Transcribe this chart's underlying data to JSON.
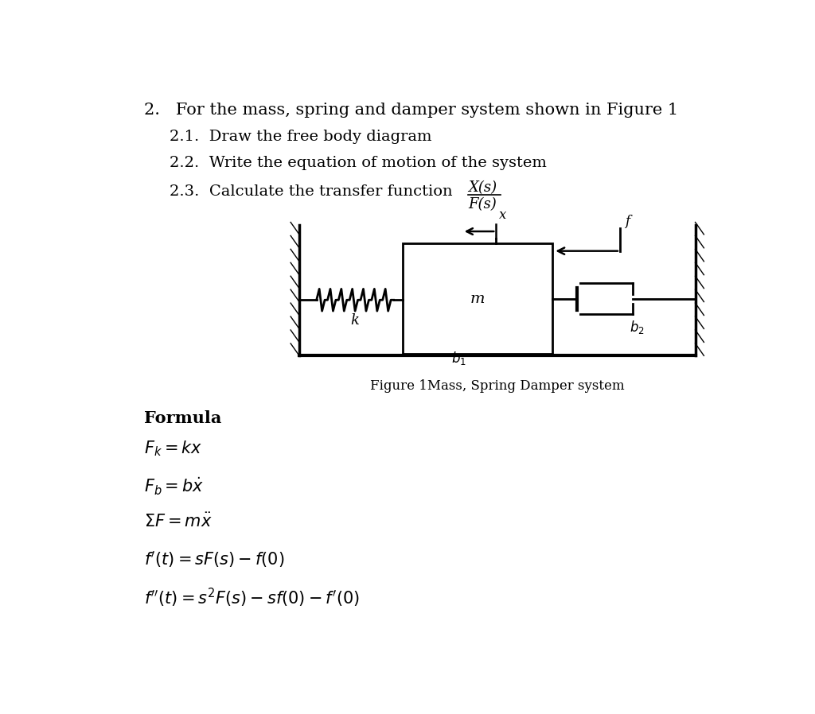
{
  "bg_color": "#ffffff",
  "text_color": "#000000",
  "title_text": "2.   For the mass, spring and damper system shown in Figure 1",
  "sub1_text": "2.1.  Draw the free body diagram",
  "sub2_text": "2.2.  Write the equation of motion of the system",
  "sub3_text": "2.3.  Calculate the transfer function",
  "fraction_num": "X(s)",
  "fraction_den": "F(s)",
  "figure_caption": "Figure 1Mass, Spring Damper system",
  "formula_title": "Formula",
  "formula1": "$F_k = kx$",
  "formula2": "$F_b = b\\dot{x}$",
  "formula3": "$\\Sigma F = m\\ddot{x}$",
  "formula4": "$f'(t) = sF(s) - f(0)$",
  "formula5": "$f''(t) = s^2F(s) - sf(0) - f'(0)$",
  "font_size_main": 15,
  "font_size_sub": 14,
  "font_size_formula": 15,
  "font_size_caption": 12
}
